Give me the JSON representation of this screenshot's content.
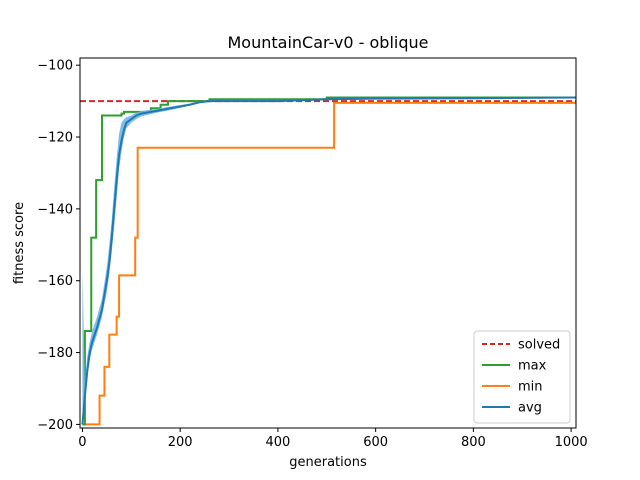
{
  "chart_data": {
    "type": "line",
    "title": "MountainCar-v0 - oblique",
    "xlabel": "generations",
    "ylabel": "fitness score",
    "xlim": [
      -5,
      1010
    ],
    "ylim": [
      -201,
      -98
    ],
    "xticks": [
      0,
      200,
      400,
      600,
      800,
      1000
    ],
    "yticks": [
      -200,
      -180,
      -160,
      -140,
      -120,
      -100
    ],
    "grid": false,
    "legend_position": "lower-right",
    "reference": {
      "name": "solved",
      "y": -110,
      "color": "#d62728",
      "style": "dashed"
    },
    "series": [
      {
        "name": "max",
        "color": "#2ca02c",
        "step": true,
        "x": [
          0,
          5,
          10,
          18,
          25,
          28,
          31,
          40,
          75,
          80,
          85,
          88,
          92,
          100,
          120,
          140,
          160,
          175,
          220,
          260,
          420,
          500,
          520,
          700,
          900,
          1010
        ],
        "y": [
          -200,
          -174,
          -174,
          -148,
          -148,
          -132,
          -132,
          -114,
          -114,
          -113.5,
          -113,
          -113,
          -113,
          -113,
          -113,
          -112,
          -111,
          -110,
          -110,
          -109.5,
          -109.5,
          -109,
          -109,
          -109,
          -109,
          -109
        ]
      },
      {
        "name": "min",
        "color": "#ff7f0e",
        "step": true,
        "x": [
          0,
          30,
          35,
          40,
          45,
          50,
          55,
          60,
          65,
          70,
          75,
          80,
          100,
          108,
          110,
          113,
          115,
          120,
          400,
          514,
          515,
          600,
          800,
          1010
        ],
        "y": [
          -200,
          -200,
          -192,
          -192,
          -184,
          -184,
          -175,
          -175,
          -175,
          -170,
          -158.5,
          -158.5,
          -158.5,
          -148,
          -148,
          -123,
          -123,
          -123,
          -123,
          -123,
          -110.5,
          -110.5,
          -110.5,
          -110.5
        ]
      },
      {
        "name": "avg",
        "color": "#1f77b4",
        "band_color": "#6fb6e6",
        "step": false,
        "x": [
          0,
          5,
          10,
          15,
          20,
          30,
          40,
          50,
          55,
          60,
          65,
          70,
          75,
          80,
          85,
          90,
          100,
          110,
          120,
          140,
          160,
          180,
          200,
          220,
          240,
          260,
          300,
          400,
          500,
          600,
          800,
          1010
        ],
        "y": [
          -200,
          -192,
          -185,
          -180,
          -177,
          -173,
          -168,
          -160,
          -155,
          -148,
          -140,
          -132,
          -125,
          -121,
          -118,
          -116,
          -115,
          -114,
          -113.5,
          -113,
          -112.5,
          -112,
          -111.5,
          -111,
          -110.3,
          -110,
          -110,
          -110,
          -109.5,
          -109.3,
          -109.2,
          -109
        ],
        "lower": [
          -201,
          -194,
          -187,
          -182,
          -179,
          -175,
          -170,
          -163,
          -158,
          -152,
          -145,
          -137,
          -129,
          -124,
          -120,
          -117.5,
          -116,
          -115,
          -114.3,
          -113.6,
          -113,
          -112.5,
          -111.9,
          -111.3,
          -110.6,
          -110.2,
          -110.1,
          -110,
          -109.6,
          -109.4,
          -109.3,
          -109.1
        ],
        "upper": [
          -157,
          -188,
          -181,
          -177,
          -174,
          -170,
          -165,
          -156,
          -150,
          -143,
          -134,
          -126,
          -119,
          -116,
          -115,
          -114.5,
          -114,
          -113.2,
          -112.8,
          -112.4,
          -112,
          -111.5,
          -111.1,
          -110.7,
          -110,
          -109.8,
          -109.9,
          -109.9,
          -109.4,
          -109.2,
          -109.1,
          -108.9
        ]
      }
    ]
  }
}
